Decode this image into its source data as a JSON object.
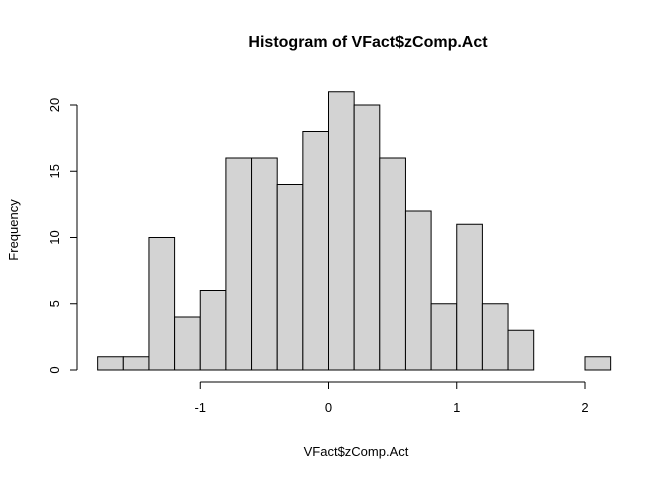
{
  "chart_data": {
    "type": "bar",
    "title": "Histogram of VFact$zComp.Act",
    "xlabel": "VFact$zComp.Act",
    "ylabel": "Frequency",
    "bin_width": 0.2,
    "bins": [
      {
        "start": -1.8,
        "end": -1.6,
        "count": 1
      },
      {
        "start": -1.6,
        "end": -1.4,
        "count": 1
      },
      {
        "start": -1.4,
        "end": -1.2,
        "count": 10
      },
      {
        "start": -1.2,
        "end": -1.0,
        "count": 4
      },
      {
        "start": -1.0,
        "end": -0.8,
        "count": 6
      },
      {
        "start": -0.8,
        "end": -0.6,
        "count": 16
      },
      {
        "start": -0.6,
        "end": -0.4,
        "count": 16
      },
      {
        "start": -0.4,
        "end": -0.2,
        "count": 14
      },
      {
        "start": -0.2,
        "end": 0.0,
        "count": 18
      },
      {
        "start": 0.0,
        "end": 0.2,
        "count": 21
      },
      {
        "start": 0.2,
        "end": 0.4,
        "count": 20
      },
      {
        "start": 0.4,
        "end": 0.6,
        "count": 16
      },
      {
        "start": 0.6,
        "end": 0.8,
        "count": 12
      },
      {
        "start": 0.8,
        "end": 1.0,
        "count": 5
      },
      {
        "start": 1.0,
        "end": 1.2,
        "count": 11
      },
      {
        "start": 1.2,
        "end": 1.4,
        "count": 5
      },
      {
        "start": 1.4,
        "end": 1.6,
        "count": 3
      },
      {
        "start": 1.6,
        "end": 1.8,
        "count": 0
      },
      {
        "start": 1.8,
        "end": 2.0,
        "count": 0
      },
      {
        "start": 2.0,
        "end": 2.2,
        "count": 1
      }
    ],
    "xlim": [
      -1.8,
      2.2
    ],
    "ylim": [
      0,
      21
    ],
    "x_ticks": [
      -1,
      0,
      1,
      2
    ],
    "y_ticks": [
      0,
      5,
      10,
      15,
      20
    ],
    "grid": false,
    "colors": {
      "bar_fill": "#d3d3d3",
      "bar_stroke": "#000000"
    }
  }
}
